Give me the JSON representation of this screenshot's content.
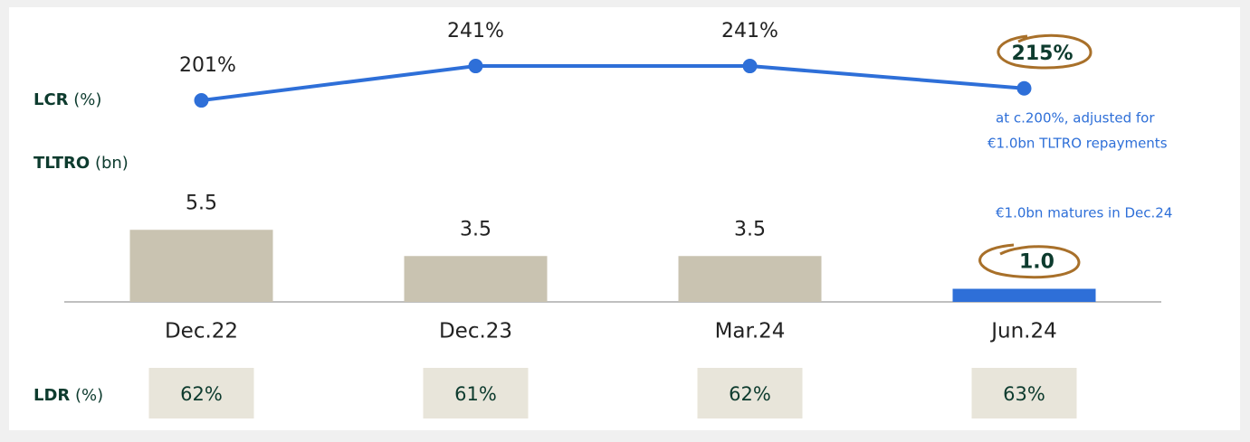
{
  "chart_data": [
    {
      "type": "line",
      "label": "LCR",
      "unit": "(%)",
      "values": [
        201,
        241,
        241,
        215
      ],
      "value_labels": [
        "201%",
        "241%",
        "241%",
        "215%"
      ],
      "color": "#2e6fd8",
      "ylim": [
        0,
        260
      ],
      "annotation": [
        "at c.200%, adjusted for",
        "€1.0bn TLTRO repayments"
      ]
    },
    {
      "type": "bar",
      "label": "TLTRO",
      "unit": "(bn)",
      "categories": [
        "Dec.22",
        "Dec.23",
        "Mar.24",
        "Jun.24"
      ],
      "values": [
        5.5,
        3.5,
        3.5,
        1.0
      ],
      "value_labels": [
        "5.5",
        "3.5",
        "3.5",
        "1.0"
      ],
      "colors": [
        "#c9c3b1",
        "#c9c3b1",
        "#c9c3b1",
        "#2e6fd8"
      ],
      "ylim": [
        0,
        6
      ],
      "annotation": "€1.0bn matures in Dec.24"
    }
  ],
  "ldr_row": {
    "label": "LDR",
    "unit": "(%)",
    "cells": [
      "62%",
      "61%",
      "62%",
      "63%"
    ]
  }
}
